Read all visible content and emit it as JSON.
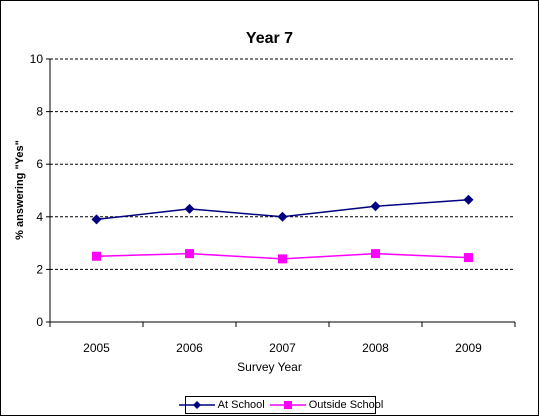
{
  "chart_data": {
    "type": "line",
    "title": "Year 7",
    "xlabel": "Survey Year",
    "ylabel": "% answering \"Yes\"",
    "categories": [
      "2005",
      "2006",
      "2007",
      "2008",
      "2009"
    ],
    "ylim": [
      0,
      10
    ],
    "yticks": [
      0,
      2,
      4,
      6,
      8,
      10
    ],
    "grid": true,
    "legend_position": "bottom",
    "series": [
      {
        "name": "At School",
        "color": "#000080",
        "marker": "diamond",
        "values": [
          3.9,
          4.3,
          4.0,
          4.4,
          4.65
        ]
      },
      {
        "name": "Outside School",
        "color": "#FF00FF",
        "marker": "square",
        "values": [
          2.5,
          2.6,
          2.4,
          2.6,
          2.45
        ]
      }
    ]
  }
}
